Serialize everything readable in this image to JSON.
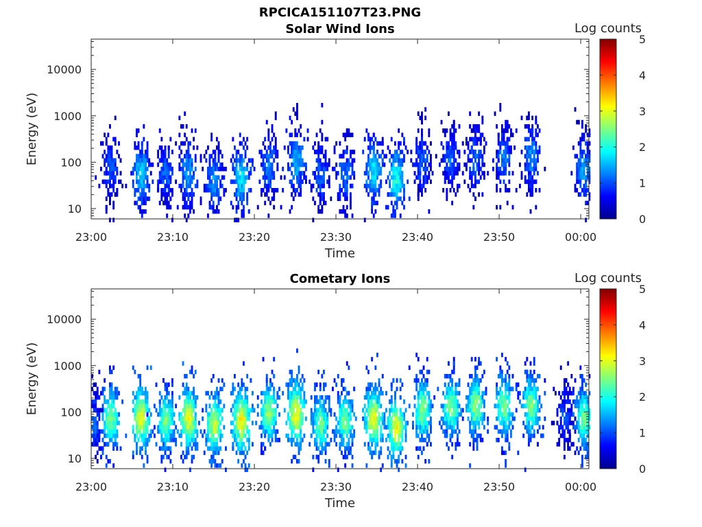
{
  "figure_title": "RPCICA151107T23.PNG",
  "chart_data": [
    {
      "type": "heatmap",
      "title": "Solar Wind Ions",
      "xlabel": "Time",
      "ylabel": "Energy (eV)",
      "x_ticks": [
        "23:00",
        "23:10",
        "23:20",
        "23:30",
        "23:40",
        "23:50",
        "00:00"
      ],
      "x_range_minutes": [
        0,
        61
      ],
      "y_scale": "log",
      "y_ticks": [
        10,
        100,
        1000,
        10000
      ],
      "ylim": [
        6,
        45000
      ],
      "colorbar": {
        "label": "Log counts",
        "min": 0,
        "max": 5,
        "ticks": [
          "0",
          "1",
          "2",
          "3",
          "4",
          "5"
        ],
        "colormap": "jet"
      },
      "grid": false,
      "bursts": [
        {
          "t": 2.3,
          "e": 80,
          "i": 0.9
        },
        {
          "t": 6.0,
          "e": 60,
          "i": 1.5
        },
        {
          "t": 9.0,
          "e": 60,
          "i": 1.0
        },
        {
          "t": 11.8,
          "e": 60,
          "i": 1.3
        },
        {
          "t": 15.0,
          "e": 45,
          "i": 1.2
        },
        {
          "t": 18.3,
          "e": 50,
          "i": 1.6
        },
        {
          "t": 21.7,
          "e": 90,
          "i": 1.1
        },
        {
          "t": 25.0,
          "e": 110,
          "i": 1.4
        },
        {
          "t": 28.0,
          "e": 60,
          "i": 1.0
        },
        {
          "t": 31.0,
          "e": 60,
          "i": 1.1
        },
        {
          "t": 34.5,
          "e": 70,
          "i": 1.6
        },
        {
          "t": 37.3,
          "e": 50,
          "i": 1.8
        },
        {
          "t": 40.5,
          "e": 110,
          "i": 1.0
        },
        {
          "t": 44.0,
          "e": 130,
          "i": 1.0
        },
        {
          "t": 47.0,
          "e": 130,
          "i": 1.0
        },
        {
          "t": 50.5,
          "e": 130,
          "i": 1.1
        },
        {
          "t": 53.8,
          "e": 150,
          "i": 1.2
        },
        {
          "t": 60.3,
          "e": 80,
          "i": 1.3
        }
      ]
    },
    {
      "type": "heatmap",
      "title": "Cometary Ions",
      "xlabel": "Time",
      "ylabel": "Energy (eV)",
      "x_ticks": [
        "23:00",
        "23:10",
        "23:20",
        "23:30",
        "23:40",
        "23:50",
        "00:00"
      ],
      "x_range_minutes": [
        0,
        61
      ],
      "y_scale": "log",
      "y_ticks": [
        10,
        100,
        1000,
        10000
      ],
      "ylim": [
        6,
        45000
      ],
      "colorbar": {
        "label": "Log counts",
        "min": 0,
        "max": 5,
        "ticks": [
          "0",
          "1",
          "2",
          "3",
          "4",
          "5"
        ],
        "colormap": "jet"
      },
      "grid": false,
      "bursts": [
        {
          "t": 0.2,
          "e": 60,
          "i": 1.0
        },
        {
          "t": 2.3,
          "e": 80,
          "i": 2.3
        },
        {
          "t": 6.0,
          "e": 80,
          "i": 2.8
        },
        {
          "t": 9.0,
          "e": 70,
          "i": 2.3
        },
        {
          "t": 11.8,
          "e": 80,
          "i": 2.8
        },
        {
          "t": 15.0,
          "e": 60,
          "i": 2.6
        },
        {
          "t": 18.3,
          "e": 70,
          "i": 2.9
        },
        {
          "t": 21.7,
          "e": 110,
          "i": 2.4
        },
        {
          "t": 25.0,
          "e": 100,
          "i": 2.9
        },
        {
          "t": 28.0,
          "e": 60,
          "i": 2.2
        },
        {
          "t": 31.0,
          "e": 70,
          "i": 2.3
        },
        {
          "t": 34.5,
          "e": 80,
          "i": 2.8
        },
        {
          "t": 37.3,
          "e": 50,
          "i": 2.8
        },
        {
          "t": 40.5,
          "e": 120,
          "i": 2.3
        },
        {
          "t": 44.0,
          "e": 140,
          "i": 2.3
        },
        {
          "t": 47.0,
          "e": 150,
          "i": 2.4
        },
        {
          "t": 50.5,
          "e": 150,
          "i": 2.3
        },
        {
          "t": 53.8,
          "e": 150,
          "i": 2.3
        },
        {
          "t": 58.0,
          "e": 100,
          "i": 0.9
        },
        {
          "t": 60.3,
          "e": 80,
          "i": 2.2
        }
      ]
    }
  ]
}
